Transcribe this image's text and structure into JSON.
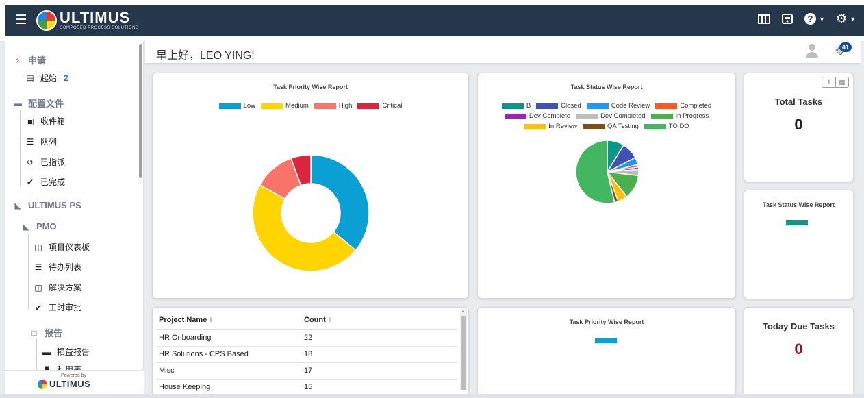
{
  "header": {
    "logo_text": "ULTIMUS",
    "logo_sub": "COMPOSED PROCESS SOLUTIONS",
    "icons": [
      "menu-icon",
      "columns-icon",
      "inbox-icon",
      "help-icon",
      "gear-icon"
    ]
  },
  "sidebar": {
    "sections": [
      {
        "label": "申请",
        "icon": "bolt-icon"
      },
      {
        "label": "配置文件",
        "icon": "equals-icon"
      },
      {
        "label": "ULTIMUS PS",
        "icon": "sitemap-icon"
      },
      {
        "label": "PMO",
        "icon": "sitemap-icon"
      },
      {
        "label": "报告",
        "icon": "file-icon"
      }
    ],
    "items": {
      "start": {
        "label": "起始",
        "badge": "2"
      },
      "inbox": "收件箱",
      "queue": "队列",
      "assigned": "已指派",
      "completed": "已完成",
      "dashboard": "项目仪表板",
      "todo": "待办列表",
      "solutions": "解决方案",
      "timesheet": "工时审批",
      "profit_report": "损益报告",
      "utilization": "利用表"
    },
    "footer": {
      "powered_by": "Powered by",
      "logo_text": "ULTIMUS"
    }
  },
  "greeting": {
    "text": "早上好，LEO YING!",
    "notif_count": "41"
  },
  "cards": {
    "priority": {
      "title": "Task Priority Wise Report",
      "legend": [
        {
          "name": "Low",
          "color": "#0ba0d4"
        },
        {
          "name": "Medium",
          "color": "#ffd400"
        },
        {
          "name": "High",
          "color": "#f8736a"
        },
        {
          "name": "Critical",
          "color": "#d9263c"
        }
      ]
    },
    "status": {
      "title": "Task Status Wise Report",
      "legend": [
        {
          "name": "B",
          "color": "#0f9688"
        },
        {
          "name": "Closed",
          "color": "#3f51b5"
        },
        {
          "name": "Code Review",
          "color": "#2196f3"
        },
        {
          "name": "Completed",
          "color": "#ff5722"
        },
        {
          "name": "Dev Complete",
          "color": "#9c27b0"
        },
        {
          "name": "Dev Completed",
          "color": "#bdbdbd"
        },
        {
          "name": "In Progress",
          "color": "#4caf50"
        },
        {
          "name": "In Review",
          "color": "#ffc107"
        },
        {
          "name": "QA Testing",
          "color": "#795019"
        },
        {
          "name": "TO DO",
          "color": "#43b661"
        }
      ]
    },
    "total_tasks": {
      "title": "Total Tasks",
      "value": "0"
    },
    "status_small": {
      "title": "Task Status Wise Report",
      "color": "#0f9688"
    },
    "priority_small": {
      "title": "Task Priority Wise Report",
      "color": "#0ba0d4"
    },
    "today_due": {
      "title": "Today Due Tasks",
      "value": "0"
    }
  },
  "projects_table": {
    "columns": [
      "Project Name",
      "Count"
    ],
    "rows": [
      [
        "HR Onboarding",
        "22"
      ],
      [
        "HR Solutions - CPS Based",
        "18"
      ],
      [
        "Misc",
        "17"
      ],
      [
        "House Keeping",
        "15"
      ]
    ]
  },
  "chart_data": [
    {
      "type": "pie",
      "title": "Task Priority Wise Report",
      "categories": [
        "Low",
        "Medium",
        "High",
        "Critical"
      ],
      "values": [
        36,
        47,
        11.5,
        5.5
      ]
    },
    {
      "type": "pie",
      "title": "Task Status Wise Report",
      "categories": [
        "B",
        "Closed",
        "Code Review",
        "Completed",
        "Dev Complete",
        "Dev Completed",
        "In Progress",
        "In Review",
        "QA Testing",
        "TO DO"
      ],
      "values": [
        7,
        7,
        3,
        1,
        1,
        2.5,
        10,
        4,
        1.5,
        43
      ]
    }
  ]
}
